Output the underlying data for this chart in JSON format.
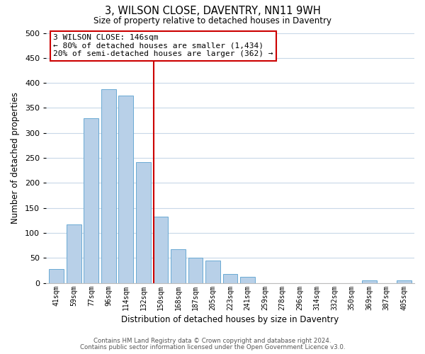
{
  "title": "3, WILSON CLOSE, DAVENTRY, NN11 9WH",
  "subtitle": "Size of property relative to detached houses in Daventry",
  "xlabel": "Distribution of detached houses by size in Daventry",
  "ylabel": "Number of detached properties",
  "bar_labels": [
    "41sqm",
    "59sqm",
    "77sqm",
    "96sqm",
    "114sqm",
    "132sqm",
    "150sqm",
    "168sqm",
    "187sqm",
    "205sqm",
    "223sqm",
    "241sqm",
    "259sqm",
    "278sqm",
    "296sqm",
    "314sqm",
    "332sqm",
    "350sqm",
    "369sqm",
    "387sqm",
    "405sqm"
  ],
  "bar_values": [
    27,
    117,
    330,
    388,
    375,
    242,
    133,
    68,
    50,
    45,
    18,
    12,
    0,
    0,
    0,
    0,
    0,
    0,
    5,
    0,
    5
  ],
  "bar_color": "#b8d0e8",
  "bar_edge_color": "#6aaad4",
  "vline_index": 6,
  "vline_color": "#cc0000",
  "ylim": [
    0,
    500
  ],
  "yticks": [
    0,
    50,
    100,
    150,
    200,
    250,
    300,
    350,
    400,
    450,
    500
  ],
  "annotation_title": "3 WILSON CLOSE: 146sqm",
  "annotation_line1": "← 80% of detached houses are smaller (1,434)",
  "annotation_line2": "20% of semi-detached houses are larger (362) →",
  "footnote1": "Contains HM Land Registry data © Crown copyright and database right 2024.",
  "footnote2": "Contains public sector information licensed under the Open Government Licence v3.0.",
  "background_color": "#ffffff",
  "grid_color": "#c8d8e8"
}
